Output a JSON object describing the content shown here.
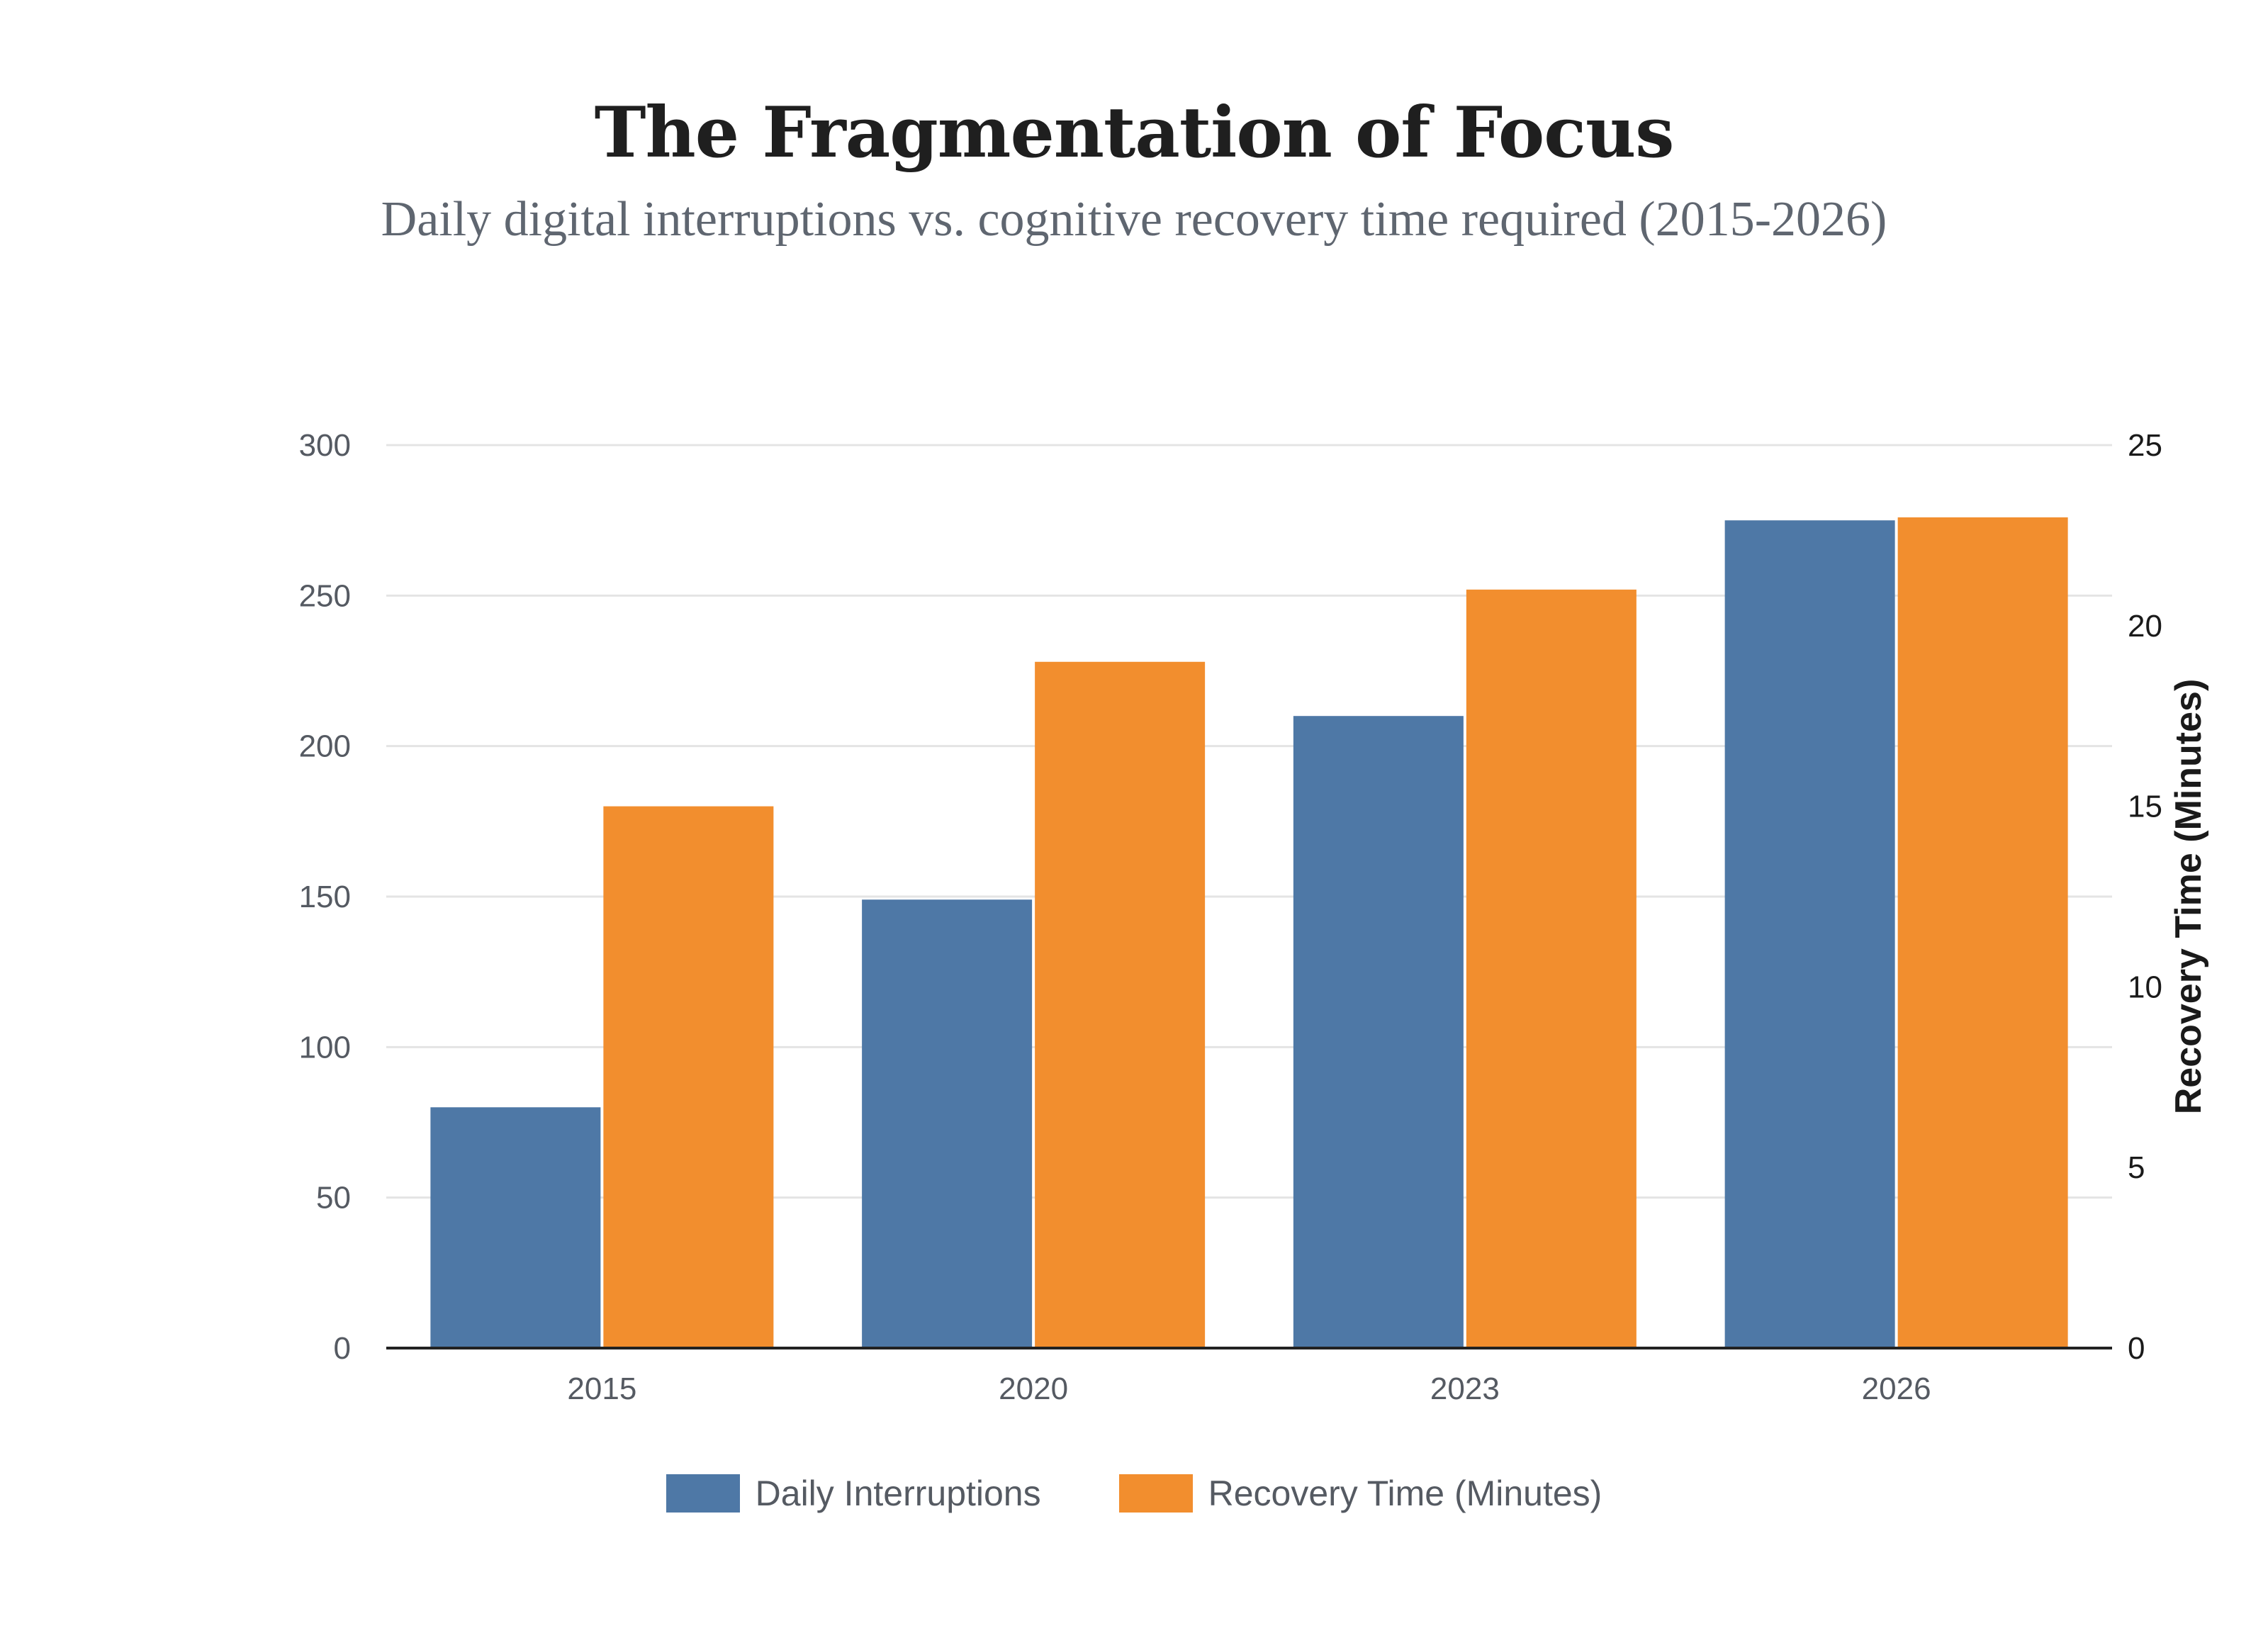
{
  "header": {
    "title": "The Fragmentation of Focus",
    "subtitle": "Daily digital interruptions vs. cognitive recovery time required (2015-2026)"
  },
  "colors": {
    "interruptions": "#4e78a6",
    "recovery": "#f28e2e",
    "grid": "#e4e4e4",
    "axis": "#222222"
  },
  "chart_data": {
    "type": "bar",
    "title": "The Fragmentation of Focus",
    "subtitle": "Daily digital interruptions vs. cognitive recovery time required (2015-2026)",
    "categories": [
      "2015",
      "2020",
      "2023",
      "2026"
    ],
    "series": [
      {
        "name": "Daily Interruptions",
        "axis": "left",
        "values": [
          80,
          149,
          210,
          275
        ]
      },
      {
        "name": "Recovery Time (Minutes)",
        "axis": "right",
        "values": [
          15,
          19,
          21,
          23
        ]
      }
    ],
    "y_left": {
      "label": "",
      "ylim": [
        0,
        300
      ],
      "ticks": [
        0,
        50,
        100,
        150,
        200,
        250,
        300
      ]
    },
    "y_right": {
      "label": "Recovery Time (Minutes)",
      "ylim": [
        0,
        25
      ],
      "ticks": [
        0,
        5,
        10,
        15,
        20,
        25
      ]
    },
    "xlabel": "",
    "grid": true,
    "legend": "bottom-center"
  }
}
